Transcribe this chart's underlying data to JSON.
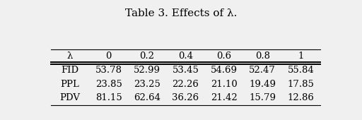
{
  "title": "Table 3. Effects of λ.",
  "col_header": [
    "λ",
    "0",
    "0.2",
    "0.4",
    "0.6",
    "0.8",
    "1"
  ],
  "rows": [
    [
      "FID",
      "53.78",
      "52.99",
      "53.45",
      "54.69",
      "52.47",
      "55.84"
    ],
    [
      "PPL",
      "23.85",
      "23.25",
      "22.26",
      "21.10",
      "19.49",
      "17.85"
    ],
    [
      "PDV",
      "81.15",
      "62.64",
      "36.26",
      "21.42",
      "15.79",
      "12.86"
    ]
  ],
  "background_color": "#f0f0f0",
  "title_fontsize": 11,
  "table_fontsize": 9.5,
  "lw_thin": 0.8,
  "lw_thick": 1.4
}
